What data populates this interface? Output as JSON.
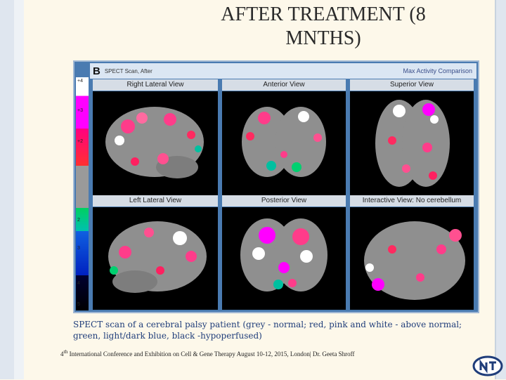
{
  "title": {
    "line1": "AFTER TREATMENT (8",
    "line2": "MNTHS)"
  },
  "figure": {
    "panel_letter": "B",
    "subtitle": "SPECT Scan, After",
    "right_label": "Max Activity Comparison",
    "scale_ticks": [
      "+4",
      "+3",
      "+2",
      "",
      "2",
      "3",
      "4",
      "5"
    ],
    "views": [
      "Right Lateral View",
      "Anterior View",
      "Superior View",
      "Left Lateral View",
      "Posterior View",
      "Interactive View: No cerebellum"
    ]
  },
  "caption": "SPECT scan of a cerebral palsy patient (grey - normal; red, pink and white - above normal; green, light/dark blue, black -hypoperfused)",
  "footer": {
    "superscript": "th",
    "number": "4",
    "text": " International Conference and Exhibition on Cell & Gene Therapy August 10-12, 2015, London| Dr. Geeta Shroff"
  },
  "colors": {
    "background": "#fdf8ea",
    "caption": "#1f3d7a",
    "frame": "#4a7bb1"
  }
}
